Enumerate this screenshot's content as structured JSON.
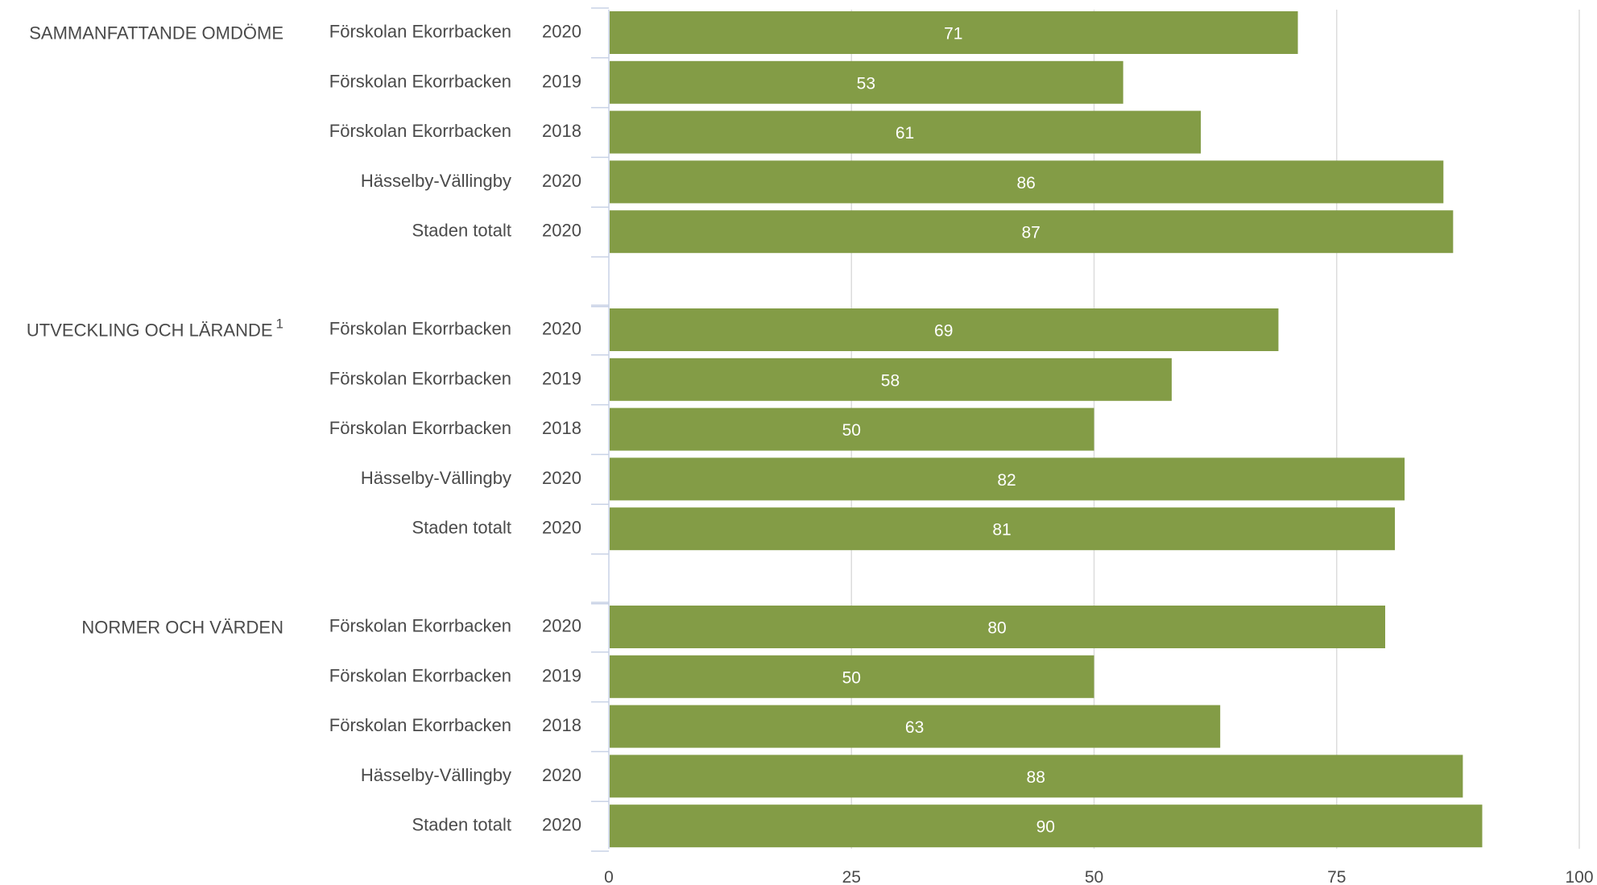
{
  "chart_data": {
    "type": "bar",
    "orientation": "horizontal",
    "title": "",
    "xlabel": "",
    "ylabel": "",
    "xlim": [
      0,
      100
    ],
    "ticks": [
      "0",
      "25",
      "50",
      "75",
      "100"
    ],
    "grid": true,
    "bar_color": "#839c46",
    "groups": [
      {
        "name": "SAMMANFATTANDE OMDÖME",
        "superscript": "",
        "rows": [
          {
            "label": "Förskolan Ekorrbacken",
            "year": "2020",
            "value": 71
          },
          {
            "label": "Förskolan Ekorrbacken",
            "year": "2019",
            "value": 53
          },
          {
            "label": "Förskolan Ekorrbacken",
            "year": "2018",
            "value": 61
          },
          {
            "label": "Hässelby-Vällingby",
            "year": "2020",
            "value": 86
          },
          {
            "label": "Staden totalt",
            "year": "2020",
            "value": 87
          }
        ]
      },
      {
        "name": "UTVECKLING OCH LÄRANDE",
        "superscript": "1",
        "rows": [
          {
            "label": "Förskolan Ekorrbacken",
            "year": "2020",
            "value": 69
          },
          {
            "label": "Förskolan Ekorrbacken",
            "year": "2019",
            "value": 58
          },
          {
            "label": "Förskolan Ekorrbacken",
            "year": "2018",
            "value": 50
          },
          {
            "label": "Hässelby-Vällingby",
            "year": "2020",
            "value": 82
          },
          {
            "label": "Staden totalt",
            "year": "2020",
            "value": 81
          }
        ]
      },
      {
        "name": "NORMER OCH VÄRDEN",
        "superscript": "",
        "rows": [
          {
            "label": "Förskolan Ekorrbacken",
            "year": "2020",
            "value": 80
          },
          {
            "label": "Förskolan Ekorrbacken",
            "year": "2019",
            "value": 50
          },
          {
            "label": "Förskolan Ekorrbacken",
            "year": "2018",
            "value": 63
          },
          {
            "label": "Hässelby-Vällingby",
            "year": "2020",
            "value": 88
          },
          {
            "label": "Staden totalt",
            "year": "2020",
            "value": 90
          }
        ]
      }
    ]
  }
}
